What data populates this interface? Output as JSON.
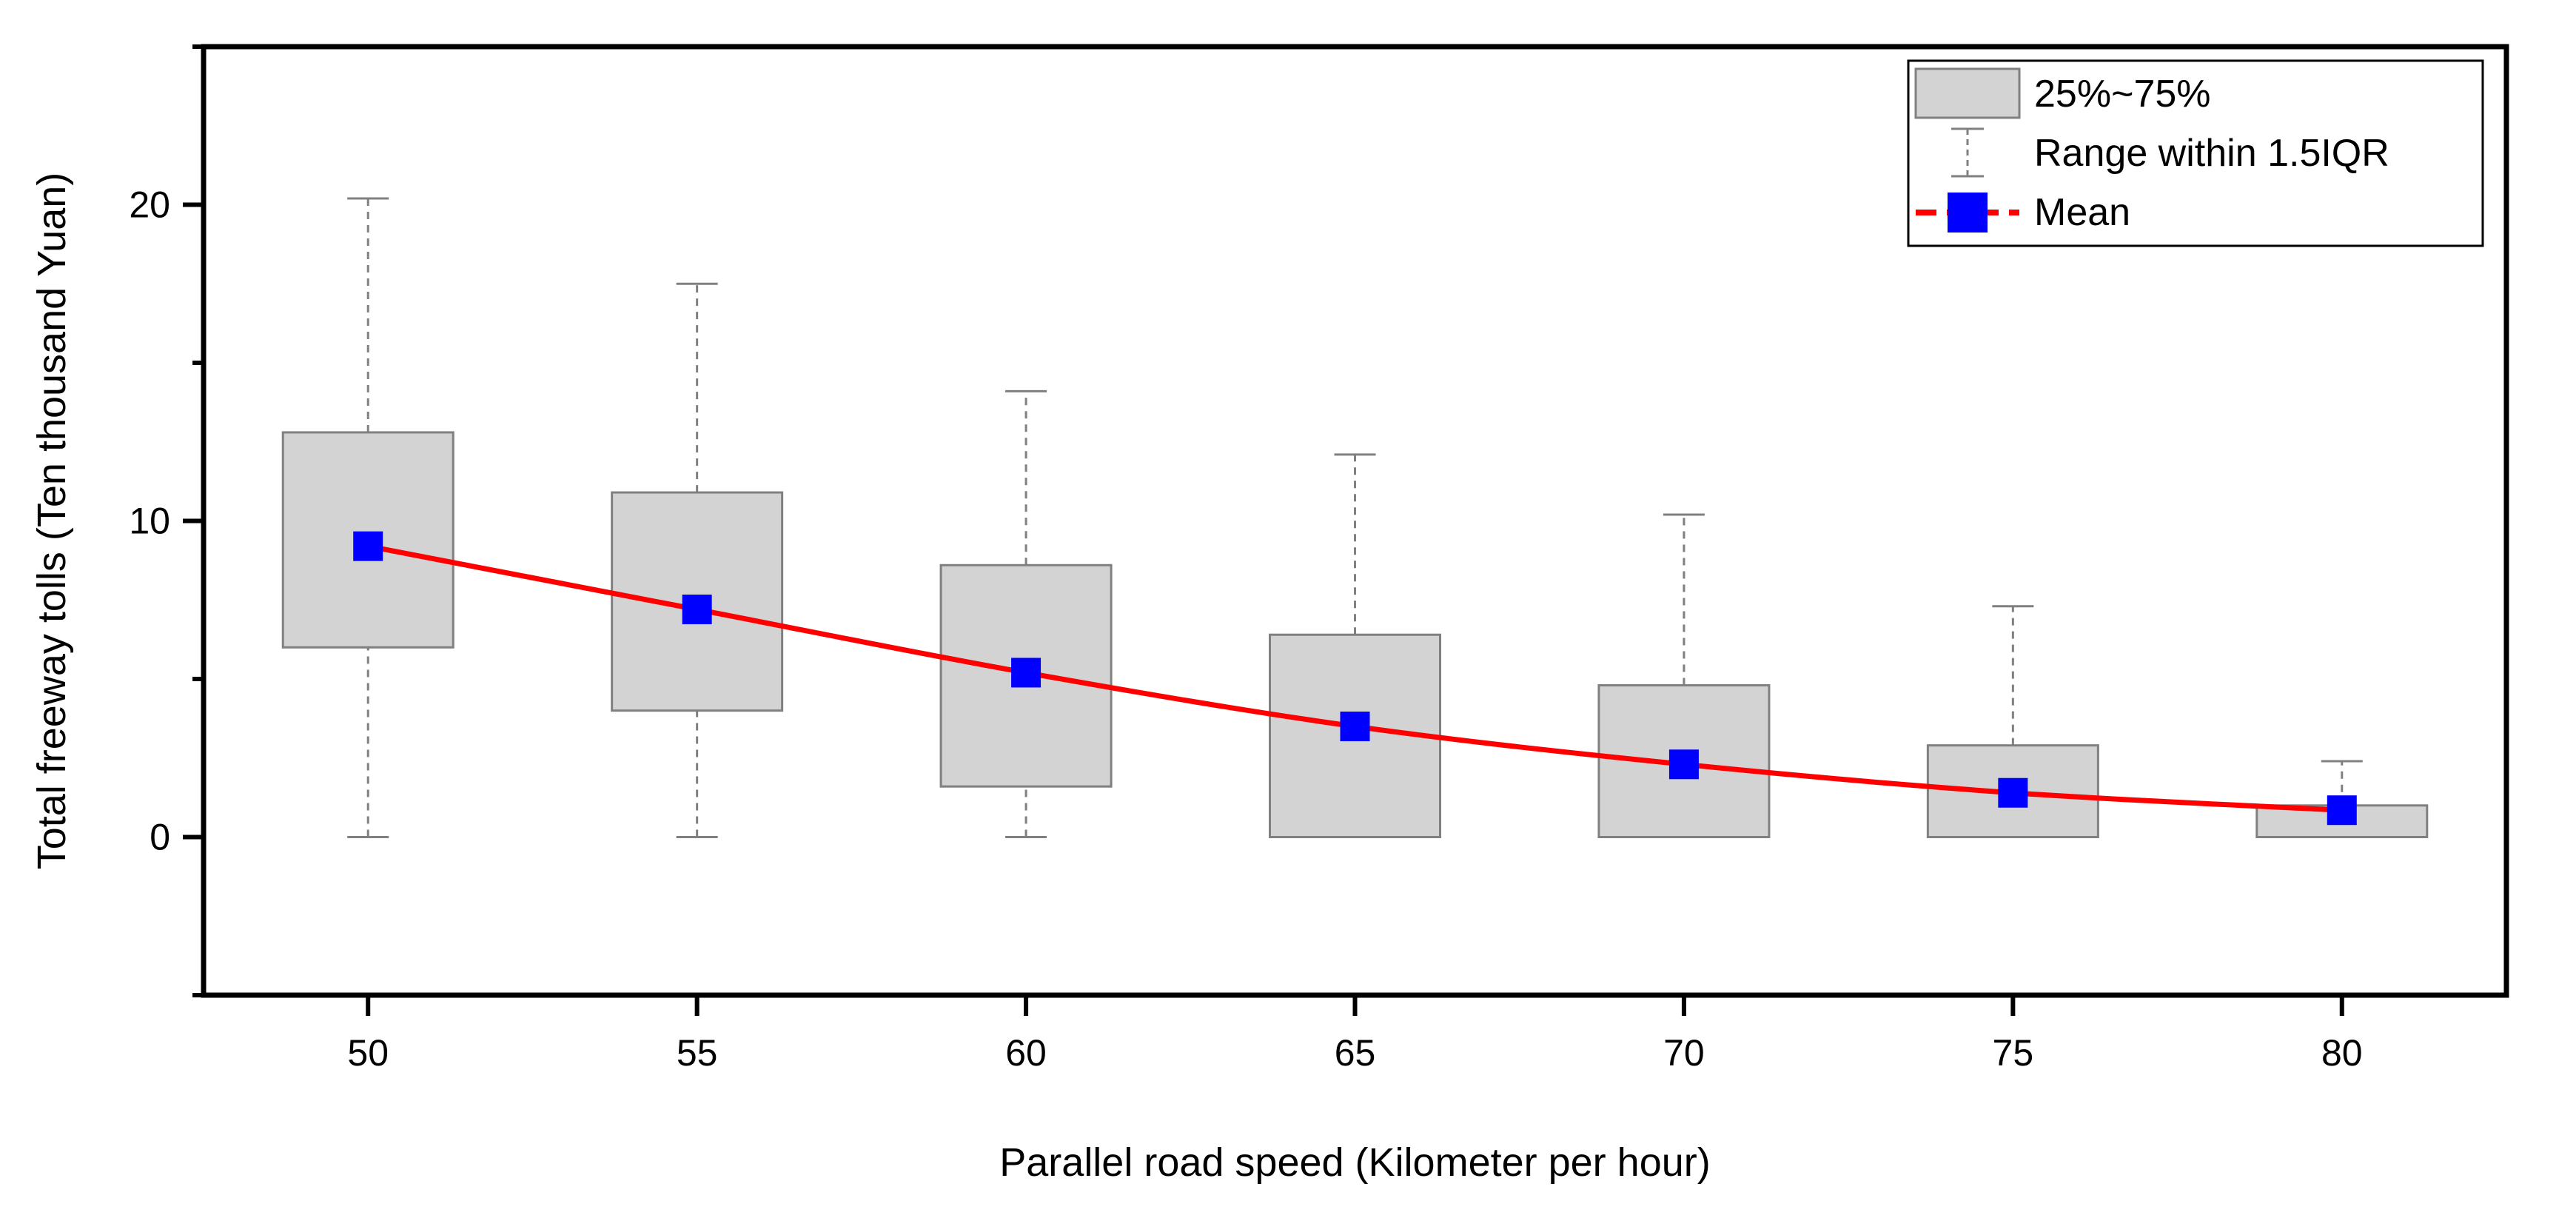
{
  "chart_data": {
    "type": "box",
    "title": "",
    "xlabel": "Parallel road speed (Kilometer per hour)",
    "ylabel": "Total freeway tolls (Ten thousand Yuan)",
    "categories": [
      "50",
      "55",
      "60",
      "65",
      "70",
      "75",
      "80"
    ],
    "x": [
      50,
      55,
      60,
      65,
      70,
      75,
      80
    ],
    "xlim": [
      47.5,
      82.5
    ],
    "ylim": [
      -5,
      25
    ],
    "yticks": [
      0,
      10,
      20
    ],
    "yticks_minor": [
      -5,
      5,
      15,
      25
    ],
    "boxes": [
      {
        "x": 50,
        "whisker_low": 0,
        "q1": 6.0,
        "q3": 12.8,
        "whisker_high": 20.2,
        "mean": 9.2
      },
      {
        "x": 55,
        "whisker_low": 0,
        "q1": 4.0,
        "q3": 10.9,
        "whisker_high": 17.5,
        "mean": 7.2
      },
      {
        "x": 60,
        "whisker_low": 0,
        "q1": 1.6,
        "q3": 8.6,
        "whisker_high": 14.1,
        "mean": 5.2
      },
      {
        "x": 65,
        "whisker_low": 0,
        "q1": 0,
        "q3": 6.4,
        "whisker_high": 12.1,
        "mean": 3.5
      },
      {
        "x": 70,
        "whisker_low": 0,
        "q1": 0,
        "q3": 4.8,
        "whisker_high": 10.2,
        "mean": 2.3
      },
      {
        "x": 75,
        "whisker_low": 0,
        "q1": 0,
        "q3": 2.9,
        "whisker_high": 7.3,
        "mean": 1.4
      },
      {
        "x": 80,
        "whisker_low": 0,
        "q1": 0,
        "q3": 1.0,
        "whisker_high": 2.4,
        "mean": 0.85
      }
    ],
    "mean_line": {
      "name": "Mean",
      "values": [
        9.2,
        7.2,
        5.2,
        3.5,
        2.3,
        1.4,
        0.85
      ]
    },
    "legend": {
      "position": "top-right",
      "entries": [
        "25%~75%",
        "Range within 1.5IQR",
        "Mean"
      ]
    },
    "colors": {
      "box_fill": "#d3d3d3",
      "box_stroke": "#808080",
      "whisker": "#808080",
      "mean_line": "#ff0000",
      "mean_marker": "#0000ff",
      "axis": "#000000"
    },
    "grid": false
  }
}
